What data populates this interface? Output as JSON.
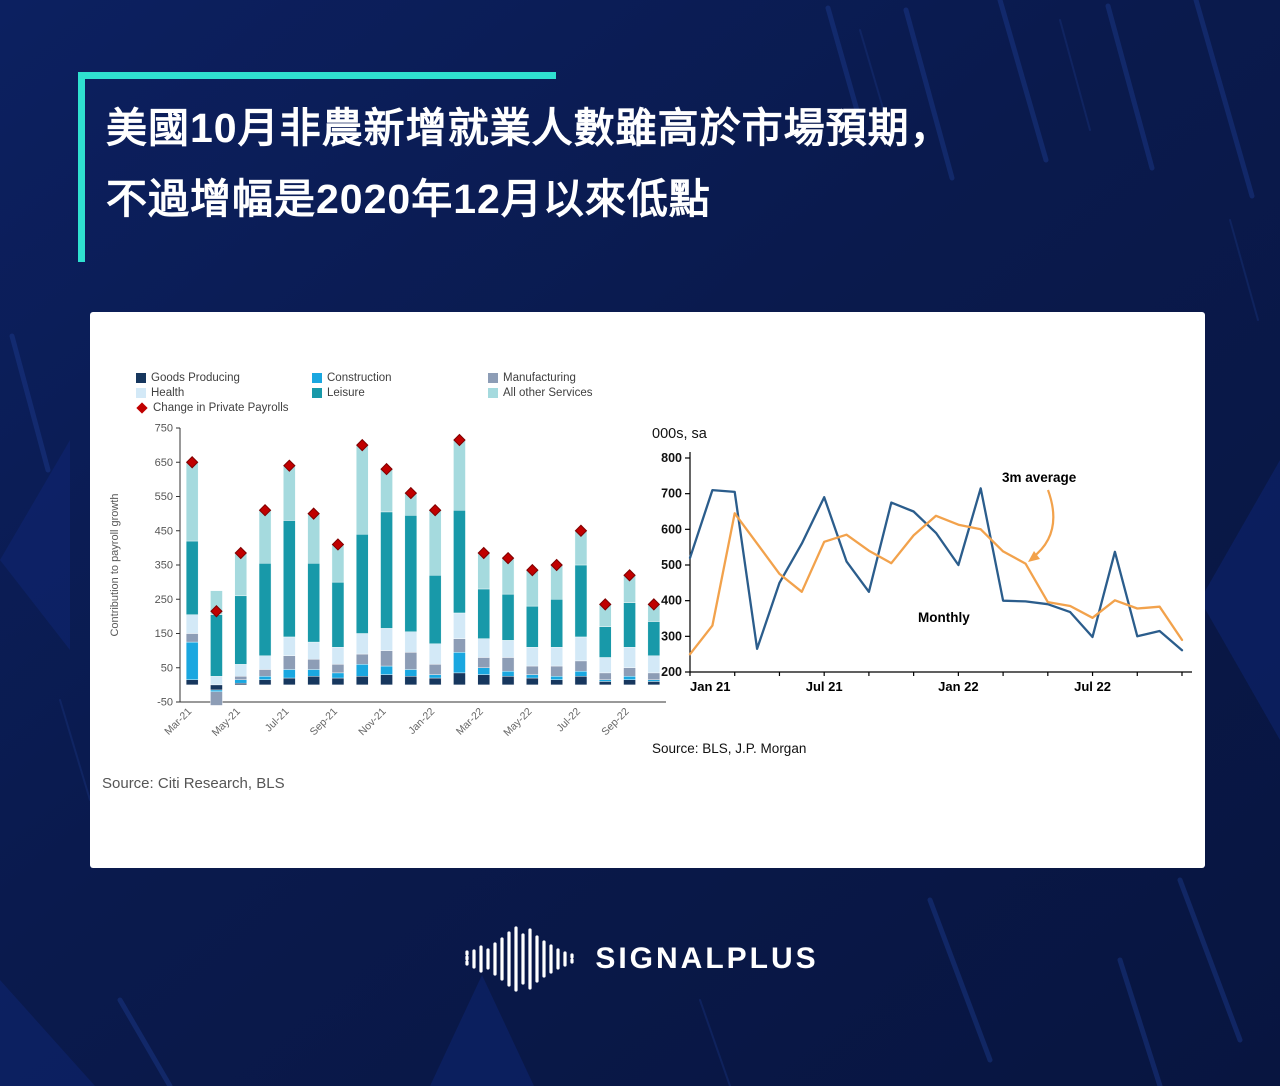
{
  "page": {
    "background_color": "#0a1a4d",
    "accent_color": "#2fe0d0",
    "card_color": "#ffffff"
  },
  "headline": {
    "line1": "美國10月非農新增就業人數雖高於市場預期，",
    "line2": "不過增幅是2020年12月以來低點"
  },
  "footer": {
    "brand": "SIGNALPLUS",
    "logo_icon": "waveform-icon"
  },
  "chart_data": [
    {
      "type": "bar",
      "stacked": true,
      "title": "",
      "ylabel": "Contribution to payroll growth",
      "ylim": [
        -50,
        750
      ],
      "yticks": [
        -50,
        50,
        150,
        250,
        350,
        450,
        550,
        650,
        750
      ],
      "grid": false,
      "legend_position": "top",
      "xtick_shown_every": 2,
      "categories": [
        "Mar-21",
        "Apr-21",
        "May-21",
        "Jun-21",
        "Jul-21",
        "Aug-21",
        "Sep-21",
        "Oct-21",
        "Nov-21",
        "Dec-21",
        "Jan-22",
        "Feb-22",
        "Mar-22",
        "Apr-22",
        "May-22",
        "Jun-22",
        "Jul-22",
        "Aug-22",
        "Sep-22",
        "Oct-22"
      ],
      "series": [
        {
          "name": "Goods Producing",
          "color": "#17375e",
          "values": [
            15,
            -15,
            5,
            15,
            20,
            25,
            20,
            25,
            30,
            25,
            20,
            35,
            30,
            25,
            20,
            15,
            25,
            10,
            15,
            10
          ]
        },
        {
          "name": "Construction",
          "color": "#1aa7e0",
          "values": [
            110,
            -5,
            10,
            10,
            25,
            20,
            15,
            35,
            25,
            20,
            10,
            60,
            20,
            15,
            10,
            10,
            15,
            5,
            10,
            5
          ]
        },
        {
          "name": "Manufacturing",
          "color": "#8d9db6",
          "values": [
            25,
            -40,
            10,
            20,
            40,
            30,
            25,
            30,
            45,
            50,
            30,
            40,
            30,
            40,
            25,
            30,
            30,
            20,
            25,
            20
          ]
        },
        {
          "name": "Health",
          "color": "#d3e9f7",
          "values": [
            55,
            25,
            35,
            40,
            55,
            50,
            50,
            60,
            65,
            60,
            60,
            75,
            55,
            50,
            55,
            55,
            70,
            45,
            60,
            50
          ]
        },
        {
          "name": "Leisure",
          "color": "#1899a9",
          "values": [
            215,
            180,
            200,
            270,
            340,
            230,
            190,
            290,
            340,
            340,
            200,
            300,
            145,
            135,
            120,
            140,
            210,
            90,
            130,
            100
          ]
        },
        {
          "name": "All other Services",
          "color": "#a5dade",
          "values": [
            230,
            70,
            125,
            155,
            160,
            145,
            110,
            260,
            125,
            65,
            190,
            205,
            105,
            105,
            105,
            100,
            100,
            65,
            80,
            50
          ]
        }
      ],
      "markers": {
        "name": "Change in  Private Payrolls",
        "shape": "diamond",
        "color": "#c00000",
        "values": [
          650,
          215,
          385,
          510,
          640,
          500,
          410,
          700,
          630,
          560,
          510,
          715,
          385,
          370,
          335,
          350,
          450,
          235,
          320,
          235
        ]
      },
      "source": "Source: Citi Research, BLS"
    },
    {
      "type": "line",
      "title": "000s, sa",
      "ylim": [
        200,
        800
      ],
      "yticks": [
        200,
        300,
        400,
        500,
        600,
        700,
        800
      ],
      "grid": false,
      "x_months": [
        "Jan-21",
        "Feb-21",
        "Mar-21",
        "Apr-21",
        "May-21",
        "Jun-21",
        "Jul-21",
        "Aug-21",
        "Sep-21",
        "Oct-21",
        "Nov-21",
        "Dec-21",
        "Jan-22",
        "Feb-22",
        "Mar-22",
        "Apr-22",
        "May-22",
        "Jun-22",
        "Jul-22",
        "Aug-22",
        "Sep-22",
        "Oct-22",
        "Nov-22"
      ],
      "xticks": {
        "indices": [
          0,
          6,
          12,
          18
        ],
        "labels": [
          "Jan 21",
          "Jul 21",
          "Jan 22",
          "Jul 22"
        ]
      },
      "series": [
        {
          "name": "Monthly",
          "color": "#2b5d8c",
          "values": [
            520,
            710,
            705,
            265,
            450,
            560,
            690,
            510,
            425,
            675,
            650,
            590,
            500,
            715,
            400,
            398,
            390,
            368,
            298,
            537,
            300,
            315,
            261
          ]
        },
        {
          "name": "3m average",
          "color": "#f2a24c",
          "values": [
            250,
            330,
            645,
            560,
            475,
            425,
            565,
            585,
            540,
            505,
            583,
            638,
            613,
            600,
            538,
            504,
            396,
            385,
            352,
            401,
            378,
            383,
            290
          ]
        }
      ],
      "annotations": [
        {
          "text": "3m average",
          "for_series": "3m average"
        },
        {
          "text": "Monthly",
          "for_series": "Monthly"
        }
      ],
      "source": "Source: BLS, J.P. Morgan"
    }
  ]
}
